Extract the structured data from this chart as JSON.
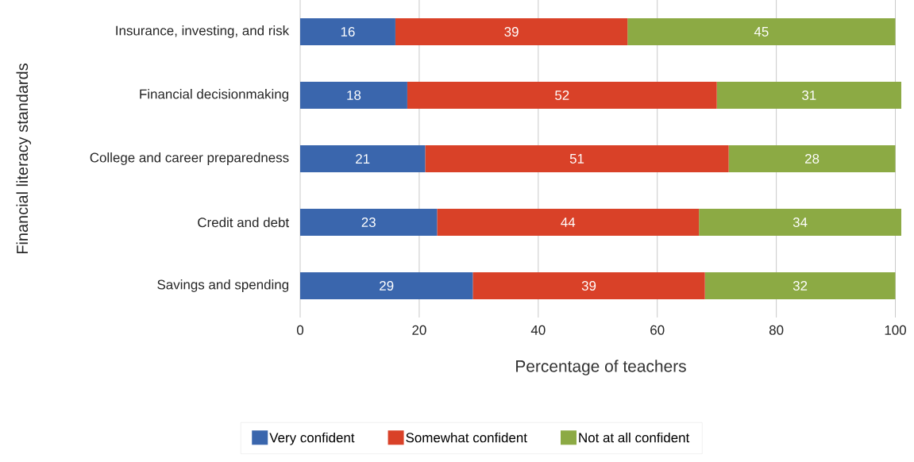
{
  "chart_data": {
    "type": "bar",
    "orientation": "horizontal",
    "stacked": true,
    "xlabel": "Percentage of teachers",
    "ylabel": "Financial literacy standards",
    "categories": [
      "Insurance, investing, and risk",
      "Financial decisionmaking",
      "College and career preparedness",
      "Credit and debt",
      "Savings and spending"
    ],
    "series": [
      {
        "name": "Very confident",
        "color": "#3a66ad",
        "values": [
          16,
          18,
          21,
          23,
          29
        ]
      },
      {
        "name": "Somewhat confident",
        "color": "#d94128",
        "values": [
          39,
          52,
          51,
          44,
          39
        ]
      },
      {
        "name": "Not at all confident",
        "color": "#8caa44",
        "values": [
          45,
          31,
          28,
          34,
          32
        ]
      }
    ],
    "xlim": [
      0,
      101
    ],
    "xticks": [
      0,
      20,
      40,
      60,
      80,
      100
    ],
    "grid": "x",
    "legend": "bottom",
    "data_labels": true
  }
}
